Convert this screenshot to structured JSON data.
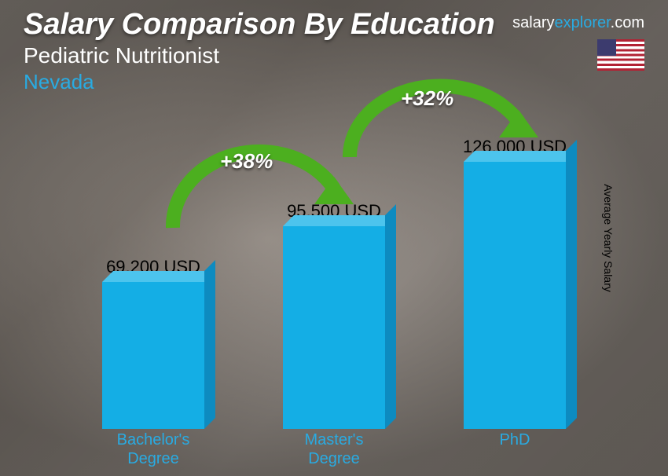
{
  "header": {
    "title": "Salary Comparison By Education",
    "subtitle": "Pediatric Nutritionist",
    "location": "Nevada"
  },
  "brand": {
    "part1": "salary",
    "part2": "explorer",
    "part3": ".com"
  },
  "yaxis_label": "Average Yearly Salary",
  "chart": {
    "type": "bar",
    "bar_color": "#14aee5",
    "bar_top_color": "#4cc4ed",
    "bar_side_color": "#0d8bc0",
    "label_color": "#29abe2",
    "value_color": "#000000",
    "title_color": "#ffffff",
    "arrow_color": "#4caf1f",
    "value_fontsize": 22,
    "label_fontsize": 20,
    "max_value": 126000,
    "max_bar_height": 340,
    "bars": [
      {
        "label_line1": "Bachelor's",
        "label_line2": "Degree",
        "value": 69200,
        "value_label": "69,200 USD"
      },
      {
        "label_line1": "Master's",
        "label_line2": "Degree",
        "value": 95500,
        "value_label": "95,500 USD"
      },
      {
        "label_line1": "PhD",
        "label_line2": "",
        "value": 126000,
        "value_label": "126,000 USD"
      }
    ],
    "arcs": [
      {
        "label": "+38%",
        "from": 0,
        "to": 1
      },
      {
        "label": "+32%",
        "from": 1,
        "to": 2
      }
    ]
  }
}
